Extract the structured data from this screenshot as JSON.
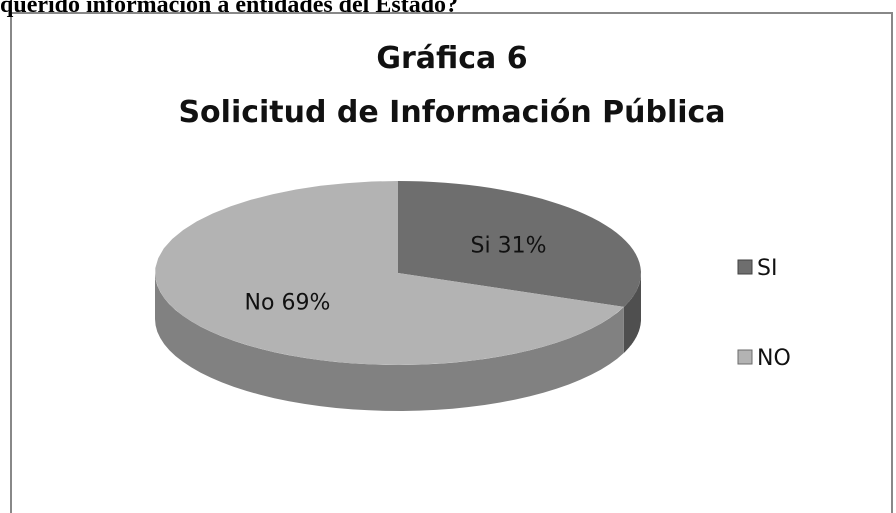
{
  "header": {
    "text": "querido información a entidades del Estado?"
  },
  "chart_data": {
    "type": "pie",
    "title": "Gráfica 6",
    "subtitle": "Solicitud de Información Pública",
    "categories": [
      "SI",
      "NO"
    ],
    "values": [
      31,
      69
    ],
    "value_labels": [
      "Si 31%",
      "No 69%"
    ],
    "colors": [
      "#6e6e6e",
      "#b3b3b3"
    ],
    "legend": "right"
  }
}
